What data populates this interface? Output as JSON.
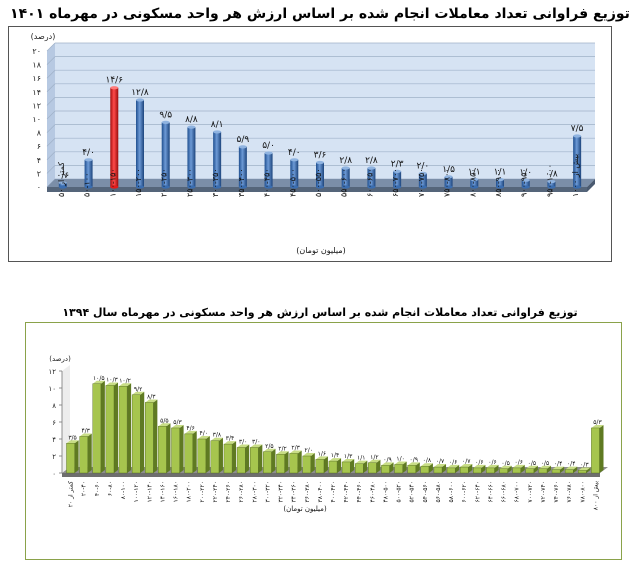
{
  "chart_data": [
    {
      "type": "bar",
      "title": "توزیع فراوانی تعداد معاملات انجام شده بر اساس ارزش هر واحد مسکونی در مهرماه ۱۴۰۱",
      "ylabel": "(درصد)",
      "xlabel": "(میلیون تومان)",
      "ylim": [
        0,
        20
      ],
      "yticks": [
        "۰",
        "۲",
        "۴",
        "۶",
        "۸",
        "۱۰",
        "۱۲",
        "۱۴",
        "۱۶",
        "۱۸",
        "۲۰"
      ],
      "grid": true,
      "highlight_index": 2,
      "colors": {
        "bar": "#3a6db0",
        "highlight": "#e31b1b",
        "plot_bg": "#d6e3f3",
        "floor": "#7b8ea8"
      },
      "categories": [
        "کمتر از ۵۰",
        "۵۰-۱۰۰",
        "۱۰۰-۱۵۰",
        "۱۵۰-۲۰۰",
        "۲۰۰-۲۵۰",
        "۲۵۰-۳۰۰",
        "۳۰۰-۳۵۰",
        "۳۵۰-۴۰۰",
        "۴۰۰-۴۵۰",
        "۴۵۰-۵۰۰",
        "۵۰۰-۵۵۰",
        "۵۵۰-۶۰۰",
        "۶۰۰-۶۵۰",
        "۶۵۰-۷۰۰",
        "۷۰۰-۷۵۰",
        "۷۵۰-۸۰۰",
        "۸۰۰-۸۵۰",
        "۸۵۰-۹۰۰",
        "۹۰۰-۹۵۰",
        "۹۵۰-۱۰۰۰",
        "بیش از ۱۰۰۰"
      ],
      "values": [
        0.6,
        4.0,
        14.6,
        12.8,
        9.5,
        8.8,
        8.1,
        5.9,
        5.0,
        4.0,
        3.6,
        2.8,
        2.8,
        2.3,
        2.0,
        1.5,
        1.1,
        1.1,
        1.0,
        0.8,
        7.5
      ],
      "value_labels": [
        "۰/۶",
        "۴/۰",
        "۱۴/۶",
        "۱۲/۸",
        "۹/۵",
        "۸/۸",
        "۸/۱",
        "۵/۹",
        "۵/۰",
        "۴/۰",
        "۳/۶",
        "۲/۸",
        "۲/۸",
        "۲/۳",
        "۲/۰",
        "۱/۵",
        "۱/۱",
        "۱/۱",
        "۱/۰",
        "۰/۸",
        "۷/۵"
      ]
    },
    {
      "type": "bar",
      "title": "توزیع فراوانی تعداد معاملات انجام شده بر اساس ارزش هر واحد مسکونی در مهرماه سال ۱۳۹۴",
      "ylabel": "(درصد)",
      "xlabel": "(میلیون تومان)",
      "ylim": [
        0,
        12
      ],
      "yticks": [
        "۰",
        "۲",
        "۴",
        "۶",
        "۸",
        "۱۰",
        "۱۲"
      ],
      "grid": false,
      "colors": {
        "bar_front": "#a6c54e",
        "bar_side": "#5f7a22",
        "bar_top": "#c8dd86",
        "plot_bg": "#ffffff",
        "floor": "#8e8e8e"
      },
      "categories": [
        "کمتر از ۲۰",
        "۲۰-۴۰",
        "۴۰-۶۰",
        "۶۰-۸۰",
        "۸۰-۱۰۰",
        "۱۰۰-۱۲۰",
        "۱۲۰-۱۴۰",
        "۱۴۰-۱۶۰",
        "۱۶۰-۱۸۰",
        "۱۸۰-۲۰۰",
        "۲۰۰-۲۲۰",
        "۲۲۰-۲۴۰",
        "۲۴۰-۲۶۰",
        "۲۶۰-۲۸۰",
        "۲۸۰-۳۰۰",
        "۳۰۰-۳۲۰",
        "۳۲۰-۳۴۰",
        "۳۴۰-۳۶۰",
        "۳۶۰-۳۸۰",
        "۳۸۰-۴۰۰",
        "۴۰۰-۴۲۰",
        "۴۲۰-۴۴۰",
        "۴۴۰-۴۶۰",
        "۴۶۰-۴۸۰",
        "۴۸۰-۵۰۰",
        "۵۰۰-۵۲۰",
        "۵۲۰-۵۴۰",
        "۵۴۰-۵۶۰",
        "۵۶۰-۵۸۰",
        "۵۸۰-۶۰۰",
        "۶۰۰-۶۲۰",
        "۶۲۰-۶۴۰",
        "۶۴۰-۶۶۰",
        "۶۶۰-۶۸۰",
        "۶۸۰-۷۰۰",
        "۷۰۰-۷۲۰",
        "۷۲۰-۷۴۰",
        "۷۴۰-۷۶۰",
        "۷۶۰-۷۸۰",
        "۷۸۰-۸۰۰",
        "بیش از ۸۰۰"
      ],
      "values": [
        3.5,
        4.3,
        10.5,
        10.3,
        10.2,
        9.2,
        8.3,
        5.5,
        5.3,
        4.6,
        4.0,
        3.8,
        3.4,
        3.0,
        3.0,
        2.5,
        2.2,
        2.3,
        2.0,
        1.6,
        1.4,
        1.3,
        1.1,
        1.2,
        0.9,
        1.0,
        0.9,
        0.8,
        0.7,
        0.6,
        0.7,
        0.6,
        0.6,
        0.5,
        0.6,
        0.5,
        0.5,
        0.4,
        0.4,
        0.3,
        5.3
      ],
      "value_labels": [
        "۳/۵",
        "۴/۳",
        "۱۰/۵",
        "۱۰/۳",
        "۱۰/۲",
        "۹/۲",
        "۸/۳",
        "۵/۵",
        "۵/۳",
        "۴/۶",
        "۴/۰",
        "۳/۸",
        "۳/۴",
        "۳/۰",
        "۳/۰",
        "۲/۵",
        "۲/۲",
        "۲/۳",
        "۲/۰",
        "۱/۶",
        "۱/۴",
        "۱/۳",
        "۱/۱",
        "۱/۲",
        "۰/۹",
        "۱/۰",
        "۰/۹",
        "۰/۸",
        "۰/۷",
        "۰/۶",
        "۰/۷",
        "۰/۶",
        "۰/۶",
        "۰/۵",
        "۰/۶",
        "۰/۵",
        "۰/۵",
        "۰/۴",
        "۰/۴",
        "۰/۳",
        "۵/۳"
      ]
    }
  ]
}
